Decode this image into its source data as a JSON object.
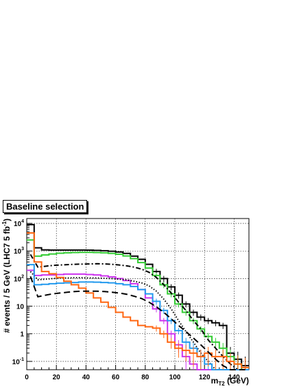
{
  "selection_label": "Baseline selection",
  "chart_data": {
    "type": "line",
    "title": "",
    "xlabel": "m_T2 (GeV)",
    "xlabel_parts": {
      "main": "m",
      "sub": "T2",
      "unit": " (GeV)"
    },
    "ylabel": "# events / 5 GeV  (LHC7 5 fb^-1)",
    "ylabel_parts": {
      "pre": "# events / 5 GeV  (LHC7 5 fb",
      "sup": "-1",
      "post": ")"
    },
    "xlim": [
      0,
      150
    ],
    "ylim": [
      0.05,
      15000
    ],
    "y_scale": "log",
    "grid": true,
    "x_ticks": [
      "0",
      "20",
      "40",
      "60",
      "80",
      "100",
      "120",
      "140"
    ],
    "y_ticks": [
      {
        "base": "10",
        "exp": "-1",
        "value": 0.1
      },
      {
        "base": "1",
        "exp": "",
        "value": 1
      },
      {
        "base": "10",
        "exp": "",
        "value": 10
      },
      {
        "base": "10",
        "exp": "2",
        "value": 100
      },
      {
        "base": "10",
        "exp": "3",
        "value": 1000
      },
      {
        "base": "10",
        "exp": "4",
        "value": 10000
      }
    ],
    "bin_edges": [
      0,
      5,
      10,
      15,
      20,
      25,
      30,
      35,
      40,
      45,
      50,
      55,
      60,
      65,
      70,
      75,
      80,
      85,
      90,
      95,
      100,
      105,
      110,
      115,
      120,
      125,
      130,
      135,
      140,
      145,
      150
    ],
    "series": [
      {
        "color": "#000000",
        "style": "hist",
        "values": [
          9000,
          1300,
          1100,
          1080,
          1080,
          1080,
          1080,
          1080,
          1070,
          1050,
          1020,
          980,
          920,
          820,
          650,
          500,
          330,
          180,
          100,
          50,
          25,
          12,
          6,
          4,
          3,
          2.5,
          2,
          0.2,
          0.12,
          0.07
        ]
      },
      {
        "color": "#33cc33",
        "style": "hist",
        "values": [
          2500,
          650,
          720,
          780,
          830,
          860,
          880,
          890,
          890,
          880,
          860,
          820,
          760,
          660,
          530,
          380,
          240,
          130,
          60,
          28,
          12,
          6,
          3,
          1.5,
          0.8,
          0.5,
          0.3,
          0.15,
          0.08,
          0.05
        ]
      },
      {
        "color": "#000000",
        "style": "dashdot",
        "values": [
          750,
          260,
          280,
          300,
          310,
          320,
          330,
          335,
          340,
          345,
          340,
          330,
          310,
          290,
          260,
          220,
          170,
          110,
          60,
          30,
          14,
          7,
          3,
          1.5,
          0.6,
          0.3,
          0.15,
          0.08,
          0.05,
          0.05
        ]
      },
      {
        "color": "#cc33ee",
        "style": "hist",
        "values": [
          200,
          130,
          135,
          135,
          140,
          145,
          145,
          145,
          140,
          135,
          125,
          115,
          100,
          85,
          65,
          40,
          20,
          8,
          3,
          1,
          0.4,
          0.15,
          0.08,
          0.05,
          0.05,
          0.05,
          0.05,
          0.05,
          0.05,
          0.05
        ]
      },
      {
        "color": "#000000",
        "style": "dotted",
        "values": [
          180,
          90,
          95,
          100,
          105,
          105,
          108,
          108,
          105,
          105,
          102,
          100,
          95,
          90,
          80,
          70,
          55,
          35,
          18,
          8,
          3,
          1.2,
          0.5,
          0.2,
          0.1,
          0.05,
          0.05,
          0.05,
          0.05,
          0.05
        ]
      },
      {
        "color": "#2299ee",
        "style": "hist",
        "values": [
          320,
          60,
          62,
          65,
          68,
          70,
          72,
          75,
          75,
          74,
          72,
          70,
          65,
          60,
          52,
          40,
          28,
          15,
          7,
          3,
          1.3,
          0.5,
          0.3,
          0.15,
          0.08,
          0.05,
          0.05,
          0.05,
          0.05,
          0.05
        ]
      },
      {
        "color": "#ff6611",
        "style": "hist",
        "values": [
          4500,
          400,
          180,
          150,
          110,
          80,
          60,
          45,
          30,
          20,
          14,
          9,
          6,
          4,
          3,
          2,
          1.8,
          1.6,
          1,
          0.5,
          0.3,
          0.25,
          0.2,
          0.15,
          0.2,
          0.15,
          0.15,
          0.1,
          0.08,
          0.06
        ]
      },
      {
        "color": "#000000",
        "style": "dashed",
        "values": [
          120,
          22,
          25,
          28,
          30,
          32,
          34,
          35,
          35,
          35,
          34,
          32,
          30,
          27,
          23,
          19,
          14,
          9.5,
          6,
          3.5,
          2,
          1.2,
          0.7,
          0.4,
          0.22,
          0.12,
          0.07,
          0.05,
          0.05,
          0.05
        ]
      }
    ]
  }
}
